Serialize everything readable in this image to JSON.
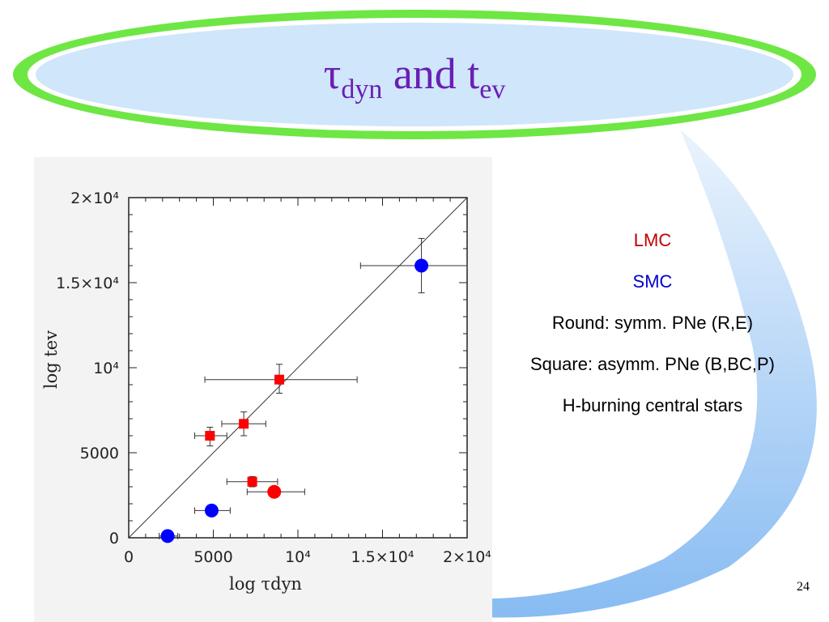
{
  "slide": {
    "title_main": "τ",
    "title_sub1": "dyn",
    "title_mid": " and t",
    "title_sub2": "ev",
    "page_number": "24"
  },
  "legend": {
    "lmc": "LMC",
    "smc": "SMC",
    "round": "Round: symm. PNe (R,E)",
    "square": "Square: asymm. PNe (B,BC,P)",
    "note": "H-burning central stars"
  },
  "colors": {
    "title": "#6a1fb5",
    "lmc": "#c00000",
    "smc": "#0000cc",
    "points_red": "#ff0000",
    "points_blue": "#0000ff"
  },
  "chart_data": {
    "type": "scatter",
    "xlabel": "log τdyn",
    "ylabel": "log tev",
    "xlim": [
      0,
      20000
    ],
    "ylim": [
      0,
      20000
    ],
    "x_ticks": [
      "0",
      "5000",
      "10⁴",
      "1.5×10⁴",
      "2×10⁴"
    ],
    "y_ticks": [
      "0",
      "5000",
      "10⁴",
      "1.5×10⁴",
      "2×10⁴"
    ],
    "diagonal": [
      [
        0,
        0
      ],
      [
        20000,
        20000
      ]
    ],
    "series": [
      {
        "name": "LMC",
        "color": "#ff0000",
        "points": [
          {
            "x": 8900,
            "y": 9300,
            "xerr": [
              4500,
              13500
            ],
            "yerr": [
              8500,
              10200
            ],
            "shape": "square"
          },
          {
            "x": 6800,
            "y": 6700,
            "xerr": [
              5500,
              8100
            ],
            "yerr": [
              6000,
              7400
            ],
            "shape": "square"
          },
          {
            "x": 4800,
            "y": 6000,
            "xerr": [
              3900,
              5800
            ],
            "yerr": [
              5400,
              6500
            ],
            "shape": "square"
          },
          {
            "x": 7300,
            "y": 3300,
            "xerr": [
              5800,
              8800
            ],
            "yerr": [
              3000,
              3600
            ],
            "shape": "square"
          },
          {
            "x": 8600,
            "y": 2700,
            "xerr": [
              7000,
              10400
            ],
            "yerr": null,
            "shape": "circle"
          }
        ]
      },
      {
        "name": "SMC",
        "color": "#0000ff",
        "points": [
          {
            "x": 17300,
            "y": 16000,
            "xerr": [
              13700,
              20000
            ],
            "yerr": [
              14400,
              17600
            ],
            "shape": "circle"
          },
          {
            "x": 4900,
            "y": 1600,
            "xerr": [
              3900,
              6000
            ],
            "yerr": null,
            "shape": "circle"
          },
          {
            "x": 2300,
            "y": 100,
            "xerr": [
              1800,
              2900
            ],
            "yerr": null,
            "shape": "circle"
          }
        ]
      }
    ],
    "grid": false
  }
}
